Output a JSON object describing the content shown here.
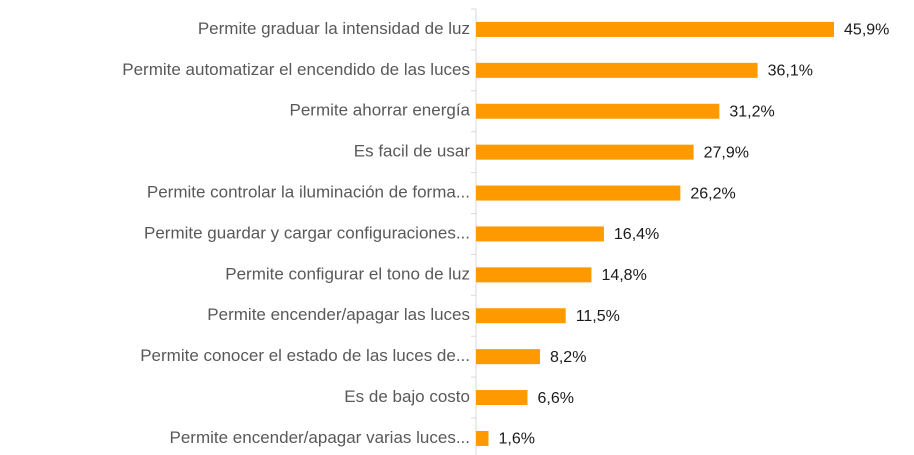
{
  "chart_data": {
    "type": "barh",
    "categories": [
      "Permite graduar la intensidad de luz",
      "Permite automatizar el encendido de las luces",
      "Permite ahorrar energía",
      "Es facil de usar",
      "Permite controlar la iluminación de forma...",
      "Permite guardar y cargar configuraciones...",
      "Permite configurar el tono de luz",
      "Permite encender/apagar las luces",
      "Permite conocer el estado de las luces de...",
      "Es de bajo costo",
      "Permite encender/apagar varias luces..."
    ],
    "values": [
      45.9,
      36.1,
      31.2,
      27.9,
      26.2,
      16.4,
      14.8,
      11.5,
      8.2,
      6.6,
      1.6
    ],
    "value_labels": [
      "45,9%",
      "36,1%",
      "31,2%",
      "27,9%",
      "26,2%",
      "16,4%",
      "14,8%",
      "11,5%",
      "8,2%",
      "6,6%",
      "1,6%"
    ],
    "color": "#ff9900",
    "xlim": [
      0,
      55
    ]
  }
}
